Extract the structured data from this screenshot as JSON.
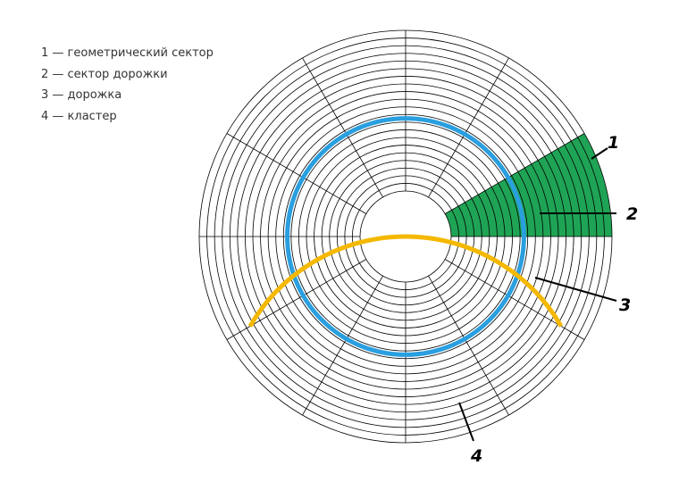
{
  "legend": {
    "items": [
      {
        "label": "1 — геометрический сектор"
      },
      {
        "label": "2 — сектор дорожки"
      },
      {
        "label": "3 — дорожка"
      },
      {
        "label": "4 — кластер"
      }
    ]
  },
  "callouts": [
    {
      "number": "1",
      "target": "геометрический сектор"
    },
    {
      "number": "2",
      "target": "сектор дорожки"
    },
    {
      "number": "3",
      "target": "дорожка"
    },
    {
      "number": "4",
      "target": "кластер"
    }
  ],
  "disk": {
    "track_count": 21,
    "sector_count": 12,
    "highlighted_track_index": 10,
    "cluster_track_index": 4,
    "cluster_sector_count": 4
  },
  "colors": {
    "geometric_sector": "#1fa455",
    "track": "#2a9fe0",
    "cluster": "#f5b800",
    "lines": "#000000",
    "background": "#ffffff"
  }
}
